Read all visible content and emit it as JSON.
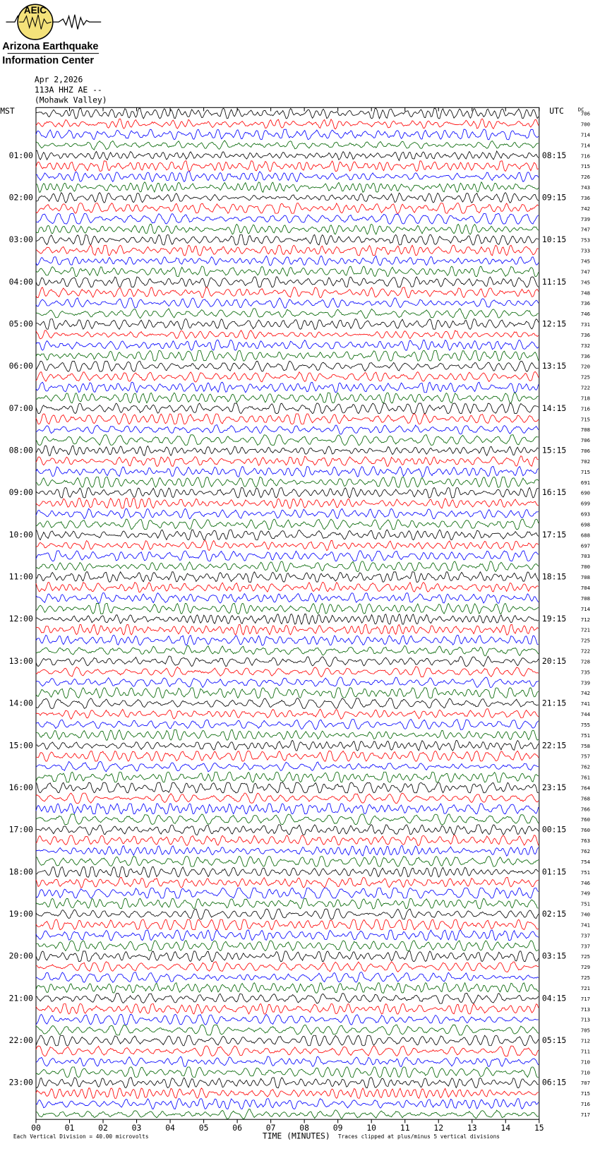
{
  "header": {
    "logo_abbr": "AEIC",
    "logo_line1": "Arizona Earthquake",
    "logo_line2": "Information Center"
  },
  "chart_data": {
    "type": "helicorder",
    "title_lines": [
      "Apr 2,2026",
      "113A HHZ AE --",
      "(Mohawk Valley)"
    ],
    "left_axis_label": "MST",
    "right_axis_label": "UTC",
    "dc_label": "DC",
    "mst_labels": [
      null,
      "01:00",
      "02:00",
      "03:00",
      "04:00",
      "05:00",
      "06:00",
      "07:00",
      "08:00",
      "09:00",
      "10:00",
      "11:00",
      "12:00",
      "13:00",
      "14:00",
      "15:00",
      "16:00",
      "17:00",
      "18:00",
      "19:00",
      "20:00",
      "21:00",
      "22:00",
      "23:00"
    ],
    "utc_labels": [
      null,
      "08:15",
      "09:15",
      "10:15",
      "11:15",
      "12:15",
      "13:15",
      "14:15",
      "15:15",
      "16:15",
      "17:15",
      "18:15",
      "19:15",
      "20:15",
      "21:15",
      "22:15",
      "23:15",
      "00:15",
      "01:15",
      "02:15",
      "03:15",
      "04:15",
      "05:15",
      "06:15"
    ],
    "dc_values": [
      706,
      700,
      714,
      714,
      716,
      715,
      726,
      743,
      736,
      742,
      739,
      747,
      753,
      733,
      745,
      747,
      745,
      748,
      736,
      746,
      731,
      736,
      732,
      736,
      720,
      725,
      722,
      718,
      716,
      715,
      708,
      706,
      706,
      702,
      715,
      691,
      690,
      699,
      693,
      698,
      688,
      697,
      703,
      700,
      708,
      704,
      708,
      714,
      712,
      721,
      725,
      722,
      728,
      735,
      739,
      742,
      741,
      744,
      755,
      751,
      758,
      757,
      762,
      761,
      764,
      768,
      766,
      760,
      760,
      763,
      762,
      754,
      751,
      746,
      749,
      751,
      740,
      741,
      737,
      737,
      725,
      729,
      725,
      721,
      717,
      713,
      713,
      705,
      712,
      711,
      710,
      710,
      707,
      715,
      716,
      717
    ],
    "colors": [
      "#000000",
      "#ff0000",
      "#0000ff",
      "#006400"
    ],
    "xlabel": "TIME (MINUTES)",
    "xlim": [
      0,
      15
    ],
    "xticks": [
      {
        "value": 0,
        "label": "00"
      },
      {
        "value": 1,
        "label": "01"
      },
      {
        "value": 2,
        "label": "02"
      },
      {
        "value": 3,
        "label": "03"
      },
      {
        "value": 4,
        "label": "04"
      },
      {
        "value": 5,
        "label": "05"
      },
      {
        "value": 6,
        "label": "06"
      },
      {
        "value": 7,
        "label": "07"
      },
      {
        "value": 8,
        "label": "08"
      },
      {
        "value": 9,
        "label": "09"
      },
      {
        "value": 10,
        "label": "10"
      },
      {
        "value": 11,
        "label": "11"
      },
      {
        "value": 12,
        "label": "12"
      },
      {
        "value": 13,
        "label": "13"
      },
      {
        "value": 14,
        "label": "14"
      },
      {
        "value": 15,
        "label": "15"
      }
    ],
    "scale_note": "Each Vertical Division =   40.00 microvolts",
    "clip_note": "Traces clipped at plus/minus 5 vertical divisions"
  }
}
